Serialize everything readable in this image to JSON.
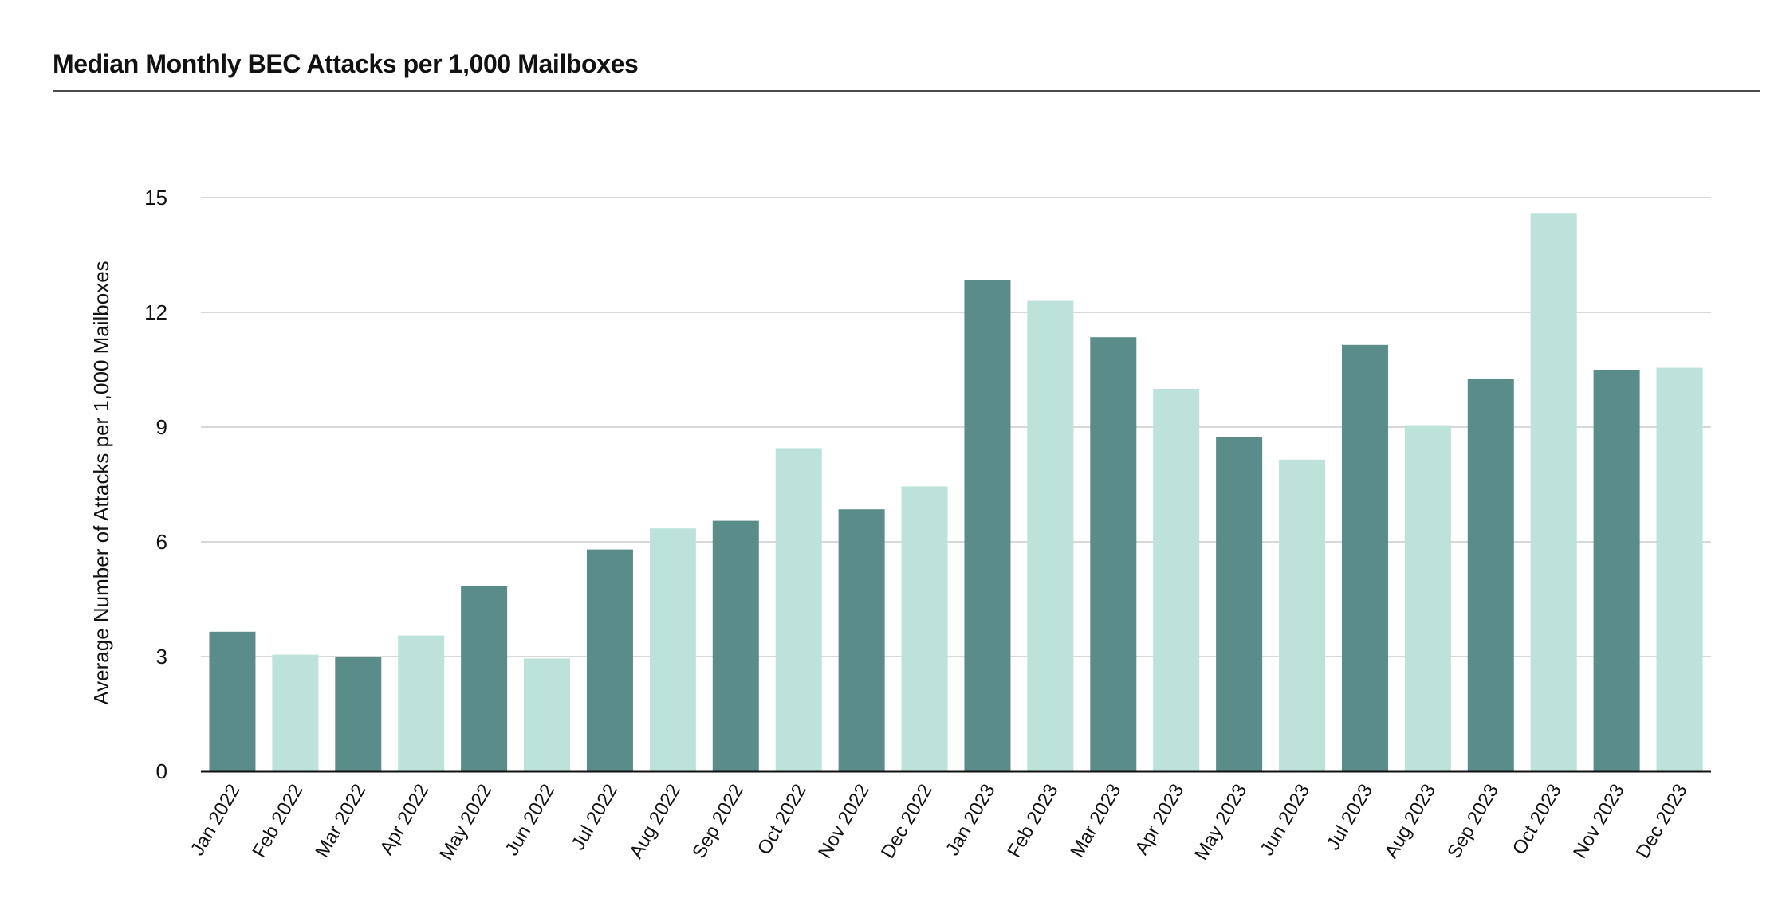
{
  "chart_data": {
    "type": "bar",
    "title": "Median Monthly BEC Attacks per 1,000 Mailboxes",
    "xlabel": "",
    "ylabel": "Average Number of Attacks per 1,000 Mailboxes",
    "ylim": [
      0,
      15
    ],
    "yticks": [
      0,
      3,
      6,
      9,
      12,
      15
    ],
    "grid": true,
    "legend": "none",
    "bar_colors": [
      "#5a8d8a",
      "#bce2da"
    ],
    "gridline_color": "#cccccc",
    "axis_color": "#111111",
    "categories": [
      "Jan 2022",
      "Feb 2022",
      "Mar 2022",
      "Apr 2022",
      "May 2022",
      "Jun 2022",
      "Jul 2022",
      "Aug 2022",
      "Sep 2022",
      "Oct 2022",
      "Nov 2022",
      "Dec 2022",
      "Jan 2023",
      "Feb 2023",
      "Mar 2023",
      "Apr 2023",
      "May 2023",
      "Jun 2023",
      "Jul 2023",
      "Aug 2023",
      "Sep 2023",
      "Oct 2023",
      "Nov 2023",
      "Dec 2023"
    ],
    "values": [
      3.65,
      3.05,
      3.0,
      3.55,
      4.85,
      2.95,
      5.8,
      6.35,
      6.55,
      8.45,
      6.85,
      7.45,
      12.85,
      12.3,
      11.35,
      10.0,
      8.75,
      8.15,
      11.15,
      9.05,
      10.25,
      14.6,
      10.5,
      10.55
    ]
  }
}
